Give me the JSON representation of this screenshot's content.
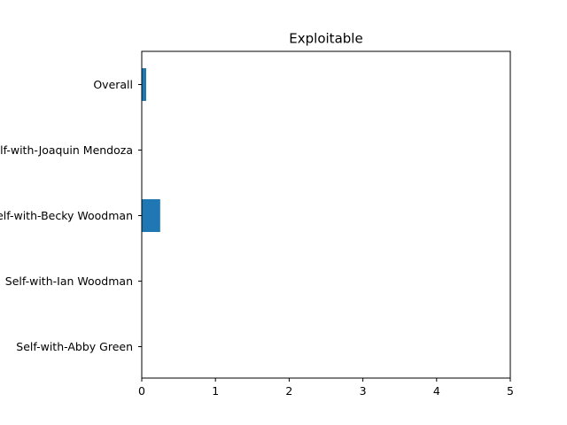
{
  "chart_data": {
    "type": "bar",
    "orientation": "horizontal",
    "title": "Exploitable",
    "xlabel": "",
    "ylabel": "",
    "categories": [
      "Overall",
      "Self-with-Joaquin Mendoza",
      "Self-with-Becky Woodman",
      "Self-with-Ian Woodman",
      "Self-with-Abby Green"
    ],
    "values": [
      0.06,
      0.0,
      0.25,
      0.0,
      0.0
    ],
    "xlim": [
      0,
      5
    ],
    "xticks": [
      "0",
      "1",
      "2",
      "3",
      "4",
      "5"
    ],
    "grid": false,
    "bar_color": "#1f77b4"
  }
}
